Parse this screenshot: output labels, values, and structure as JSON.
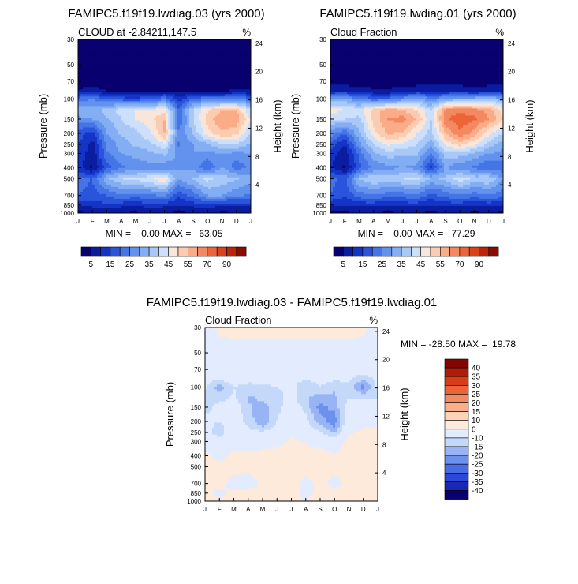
{
  "colors": {
    "abs_scale": [
      "#08006e",
      "#0a1ca0",
      "#1434c8",
      "#2a54dc",
      "#4474e6",
      "#6292ee",
      "#84aef4",
      "#a8c8f8",
      "#cce0fc",
      "#fae6d8",
      "#fcccb0",
      "#faac88",
      "#f48860",
      "#ec6438",
      "#dc4018",
      "#bc2408",
      "#8c0a02"
    ],
    "diff_scale": [
      "#08006e",
      "#1828b4",
      "#2c48d8",
      "#4a6ce6",
      "#6c90ee",
      "#98b4f4",
      "#c4d8fa",
      "#e2ecfe",
      "#fdeadb",
      "#fcd2b8",
      "#faae8c",
      "#f48a60",
      "#ec6438",
      "#d83c18",
      "#b01c06",
      "#840602"
    ]
  },
  "chart_data": [
    {
      "type": "heatmap",
      "title": "FAMIPC5.f19f19.lwdiag.03 (yrs 2000)",
      "subtitle_left": "CLOUD at -2.84211,147.5",
      "subtitle_right": "%",
      "ylabel": "Pressure (mb)",
      "y2label": "Height (km)",
      "x_ticks": [
        "J",
        "F",
        "M",
        "A",
        "M",
        "J",
        "J",
        "A",
        "S",
        "O",
        "N",
        "D",
        "J"
      ],
      "p_ticks": [
        "30",
        "50",
        "70",
        "100",
        "150",
        "200",
        "250",
        "300",
        "400",
        "500",
        "700",
        "850",
        "1000"
      ],
      "p_values": [
        30,
        50,
        70,
        100,
        150,
        200,
        250,
        300,
        400,
        500,
        700,
        850,
        1000
      ],
      "h_ticks": [
        "24",
        "20",
        "16",
        "12",
        "8",
        "4"
      ],
      "h_values": [
        24,
        20,
        16,
        12,
        8,
        4
      ],
      "minmax": "MIN =    0.00 MAX =   63.05",
      "colorbar_labels": [
        "5",
        "15",
        "25",
        "35",
        "45",
        "55",
        "70",
        "90"
      ],
      "levels": [
        5,
        10,
        15,
        20,
        25,
        30,
        35,
        40,
        45,
        50,
        55,
        60,
        65,
        70,
        80,
        90
      ],
      "months": [
        0,
        1,
        2,
        3,
        4,
        5,
        6,
        7,
        8,
        9,
        10,
        11,
        12
      ],
      "pressures": [
        30,
        50,
        70,
        85,
        100,
        125,
        150,
        200,
        250,
        300,
        400,
        500,
        700,
        850,
        1000
      ],
      "values": [
        [
          0,
          0,
          0,
          0,
          0,
          0,
          0,
          0,
          0,
          0,
          0,
          0,
          0
        ],
        [
          0,
          0,
          0,
          0,
          0,
          0,
          0,
          0,
          0,
          0,
          0,
          0,
          0
        ],
        [
          1,
          1,
          1,
          1,
          1,
          1,
          1,
          1,
          1,
          1,
          1,
          1,
          1
        ],
        [
          6,
          8,
          5,
          4,
          3,
          4,
          5,
          3,
          5,
          4,
          4,
          6,
          6
        ],
        [
          22,
          25,
          20,
          18,
          16,
          20,
          24,
          12,
          22,
          24,
          24,
          24,
          22
        ],
        [
          35,
          32,
          38,
          42,
          45,
          45,
          48,
          22,
          40,
          50,
          55,
          55,
          40
        ],
        [
          28,
          30,
          34,
          40,
          45,
          48,
          55,
          20,
          40,
          52,
          60,
          58,
          45
        ],
        [
          18,
          12,
          30,
          36,
          38,
          44,
          55,
          26,
          36,
          48,
          54,
          52,
          40
        ],
        [
          15,
          8,
          26,
          32,
          36,
          38,
          44,
          24,
          30,
          34,
          40,
          40,
          34
        ],
        [
          15,
          6,
          24,
          30,
          32,
          34,
          36,
          28,
          30,
          28,
          30,
          28,
          30
        ],
        [
          12,
          4,
          18,
          24,
          26,
          28,
          26,
          30,
          28,
          20,
          30,
          22,
          26
        ],
        [
          22,
          20,
          34,
          40,
          42,
          44,
          50,
          30,
          36,
          42,
          38,
          36,
          32
        ],
        [
          20,
          18,
          20,
          24,
          22,
          24,
          26,
          16,
          22,
          30,
          30,
          26,
          24
        ],
        [
          10,
          12,
          14,
          12,
          10,
          14,
          12,
          10,
          12,
          14,
          10,
          12,
          12
        ],
        [
          4,
          4,
          4,
          4,
          4,
          4,
          4,
          4,
          4,
          4,
          4,
          4,
          4
        ]
      ]
    },
    {
      "type": "heatmap",
      "title": "FAMIPC5.f19f19.lwdiag.01 (yrs 2000)",
      "subtitle_left": "Cloud Fraction",
      "subtitle_right": "%",
      "ylabel": "Pressure (mb)",
      "y2label": "Height (km)",
      "x_ticks": [
        "J",
        "F",
        "M",
        "A",
        "M",
        "J",
        "J",
        "A",
        "S",
        "O",
        "N",
        "D",
        "J"
      ],
      "p_ticks": [
        "30",
        "50",
        "70",
        "100",
        "150",
        "200",
        "250",
        "300",
        "400",
        "500",
        "700",
        "850",
        "1000"
      ],
      "p_values": [
        30,
        50,
        70,
        100,
        150,
        200,
        250,
        300,
        400,
        500,
        700,
        850,
        1000
      ],
      "h_ticks": [
        "24",
        "20",
        "16",
        "12",
        "8",
        "4"
      ],
      "h_values": [
        24,
        20,
        16,
        12,
        8,
        4
      ],
      "minmax": "MIN =    0.00 MAX =   77.29",
      "colorbar_labels": [
        "5",
        "15",
        "25",
        "35",
        "45",
        "55",
        "70",
        "90"
      ],
      "levels": [
        5,
        10,
        15,
        20,
        25,
        30,
        35,
        40,
        45,
        50,
        55,
        60,
        65,
        70,
        80,
        90
      ],
      "months": [
        0,
        1,
        2,
        3,
        4,
        5,
        6,
        7,
        8,
        9,
        10,
        11,
        12
      ],
      "pressures": [
        30,
        50,
        70,
        85,
        100,
        125,
        150,
        200,
        250,
        300,
        400,
        500,
        700,
        850,
        1000
      ],
      "values": [
        [
          0,
          0,
          0,
          0,
          0,
          0,
          0,
          0,
          0,
          0,
          0,
          0,
          0
        ],
        [
          0,
          0,
          0,
          0,
          0,
          0,
          0,
          0,
          0,
          0,
          0,
          0,
          0
        ],
        [
          1,
          1,
          2,
          1,
          1,
          1,
          1,
          1,
          1,
          1,
          1,
          1,
          1
        ],
        [
          10,
          10,
          8,
          6,
          6,
          8,
          10,
          10,
          10,
          10,
          8,
          10,
          10
        ],
        [
          30,
          32,
          24,
          22,
          22,
          28,
          32,
          26,
          30,
          34,
          34,
          38,
          30
        ],
        [
          48,
          45,
          44,
          52,
          58,
          55,
          50,
          40,
          62,
          64,
          62,
          58,
          48
        ],
        [
          40,
          40,
          38,
          52,
          60,
          62,
          55,
          40,
          64,
          68,
          66,
          60,
          50
        ],
        [
          28,
          20,
          34,
          48,
          56,
          54,
          45,
          38,
          55,
          64,
          58,
          46,
          40
        ],
        [
          18,
          10,
          28,
          40,
          46,
          44,
          40,
          32,
          46,
          52,
          46,
          38,
          32
        ],
        [
          14,
          6,
          22,
          34,
          38,
          36,
          36,
          24,
          38,
          38,
          34,
          30,
          28
        ],
        [
          10,
          4,
          18,
          26,
          28,
          30,
          28,
          14,
          30,
          26,
          24,
          20,
          22
        ],
        [
          22,
          18,
          36,
          40,
          38,
          40,
          42,
          34,
          36,
          44,
          38,
          40,
          30
        ],
        [
          20,
          16,
          22,
          24,
          22,
          22,
          24,
          18,
          22,
          24,
          22,
          24,
          22
        ],
        [
          10,
          10,
          12,
          12,
          10,
          12,
          12,
          10,
          12,
          12,
          10,
          12,
          10
        ],
        [
          4,
          4,
          4,
          4,
          4,
          4,
          4,
          4,
          4,
          4,
          4,
          4,
          4
        ]
      ]
    },
    {
      "type": "heatmap",
      "title": "FAMIPC5.f19f19.lwdiag.03 - FAMIPC5.f19f19.lwdiag.01",
      "subtitle_left": "Cloud Fraction",
      "subtitle_right": "%",
      "ylabel": "Pressure (mb)",
      "y2label": "Height (km)",
      "x_ticks": [
        "J",
        "F",
        "M",
        "A",
        "M",
        "J",
        "J",
        "A",
        "S",
        "O",
        "N",
        "D",
        "J"
      ],
      "p_ticks": [
        "30",
        "50",
        "70",
        "100",
        "150",
        "200",
        "250",
        "300",
        "400",
        "500",
        "700",
        "850",
        "1000"
      ],
      "p_values": [
        30,
        50,
        70,
        100,
        150,
        200,
        250,
        300,
        400,
        500,
        700,
        850,
        1000
      ],
      "h_ticks": [
        "24",
        "20",
        "16",
        "12",
        "8",
        "4"
      ],
      "h_values": [
        24,
        20,
        16,
        12,
        8,
        4
      ],
      "minmax": "MIN = -28.50 MAX =  19.78",
      "colorbar_labels": [
        "40",
        "35",
        "30",
        "25",
        "20",
        "15",
        "10",
        "0",
        "-10",
        "-15",
        "-20",
        "-25",
        "-30",
        "-35",
        "-40"
      ],
      "levels": [
        -40,
        -35,
        -30,
        -25,
        -20,
        -15,
        -10,
        0,
        10,
        15,
        20,
        25,
        30,
        35,
        40
      ],
      "months": [
        0,
        1,
        2,
        3,
        4,
        5,
        6,
        7,
        8,
        9,
        10,
        11,
        12
      ],
      "pressures": [
        30,
        50,
        70,
        85,
        100,
        125,
        150,
        200,
        250,
        300,
        400,
        500,
        700,
        850,
        1000
      ],
      "values": [
        [
          -2,
          1,
          1,
          1,
          1,
          1,
          1,
          1,
          1,
          1,
          1,
          1,
          -2
        ],
        [
          -3,
          -2,
          -1,
          -1,
          -1,
          -1,
          -1,
          -1,
          -1,
          -1,
          -1,
          -2,
          -3
        ],
        [
          -4,
          -4,
          -5,
          -4,
          -4,
          -5,
          -5,
          -6,
          -5,
          -6,
          -5,
          -6,
          -5
        ],
        [
          -8,
          -10,
          -6,
          -8,
          -8,
          -8,
          -8,
          -10,
          -8,
          -9,
          -9,
          -14,
          -8
        ],
        [
          -9,
          -18,
          -10,
          -12,
          -11,
          -10,
          -8,
          -14,
          -10,
          -14,
          -12,
          -22,
          -9
        ],
        [
          -12,
          -12,
          -9,
          -16,
          -14,
          -12,
          -8,
          -14,
          -18,
          -16,
          -10,
          -10,
          -10
        ],
        [
          -12,
          -8,
          -6,
          -14,
          -17,
          -12,
          -6,
          -12,
          -22,
          -18,
          -6,
          -6,
          -6
        ],
        [
          -8,
          -10,
          -6,
          -12,
          -20,
          -10,
          -4,
          -8,
          -18,
          -24,
          -4,
          -4,
          -4
        ],
        [
          -6,
          -14,
          -4,
          -8,
          -9,
          -6,
          -2,
          -6,
          -9,
          -16,
          -2,
          2,
          4
        ],
        [
          -4,
          -6,
          -3,
          -5,
          -6,
          -4,
          2,
          -2,
          -4,
          -6,
          3,
          4,
          5
        ],
        [
          2,
          -2,
          2,
          2,
          4,
          6,
          8,
          6,
          4,
          1,
          4,
          4,
          8
        ],
        [
          2,
          2,
          2,
          2,
          4,
          4,
          6,
          4,
          2,
          2,
          2,
          2,
          4
        ],
        [
          2,
          2,
          -2,
          -4,
          2,
          2,
          2,
          -2,
          2,
          -2,
          2,
          2,
          2
        ],
        [
          2,
          -2,
          2,
          2,
          2,
          2,
          2,
          -2,
          2,
          2,
          2,
          2,
          2
        ],
        [
          1,
          1,
          1,
          1,
          1,
          1,
          1,
          1,
          1,
          1,
          1,
          1,
          1
        ]
      ]
    }
  ]
}
